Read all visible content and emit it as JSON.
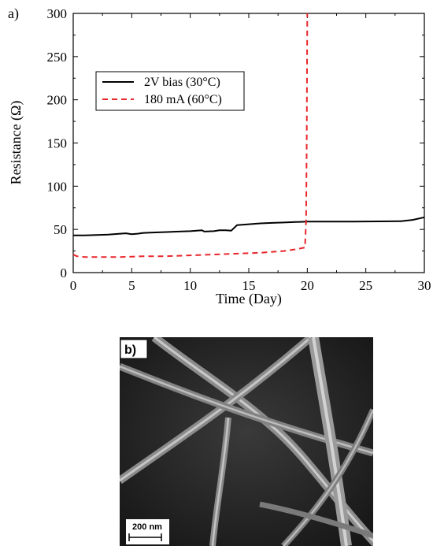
{
  "chart_data": {
    "type": "line",
    "panel_label": "a)",
    "xlabel": "Time (Day)",
    "ylabel": "Resistance (Ω)",
    "xlim": [
      0,
      30
    ],
    "ylim": [
      0,
      300
    ],
    "x_ticks": [
      0,
      5,
      10,
      15,
      20,
      25,
      30
    ],
    "y_ticks": [
      0,
      50,
      100,
      150,
      200,
      250,
      300
    ],
    "grid": false,
    "legend_position": "upper-left",
    "series": [
      {
        "name": "2V bias (30°C)",
        "color": "#000000",
        "line_style": "solid",
        "x": [
          0,
          1,
          2,
          3,
          4,
          4.5,
          5,
          5.5,
          6,
          7,
          8,
          9,
          10,
          11,
          11.2,
          12,
          12.5,
          13,
          13.5,
          14,
          15,
          16,
          17,
          18,
          19,
          20,
          22,
          24,
          26,
          28,
          29,
          30
        ],
        "y": [
          43,
          43,
          43.5,
          44,
          45,
          45.5,
          44.5,
          45,
          46,
          46.5,
          47,
          47.5,
          48,
          49,
          47.5,
          48,
          49,
          49,
          48.5,
          55,
          56,
          57,
          57.5,
          58,
          58.5,
          59,
          59,
          59,
          59.3,
          59.5,
          61,
          64
        ]
      },
      {
        "name": "180 mA (60°C)",
        "color": "#e8262b",
        "line_style": "dashed",
        "x": [
          0,
          0.3,
          1,
          2,
          4,
          6,
          8,
          10,
          12,
          14,
          16,
          18,
          19,
          19.8,
          19.9,
          19.95,
          20
        ],
        "y": [
          21,
          19,
          18,
          18,
          18,
          19,
          19,
          20,
          21,
          22,
          23,
          25,
          27,
          29,
          60,
          150,
          300
        ]
      }
    ]
  },
  "image_panel": {
    "label": "b)",
    "scale_bar_label": "200 nm"
  }
}
